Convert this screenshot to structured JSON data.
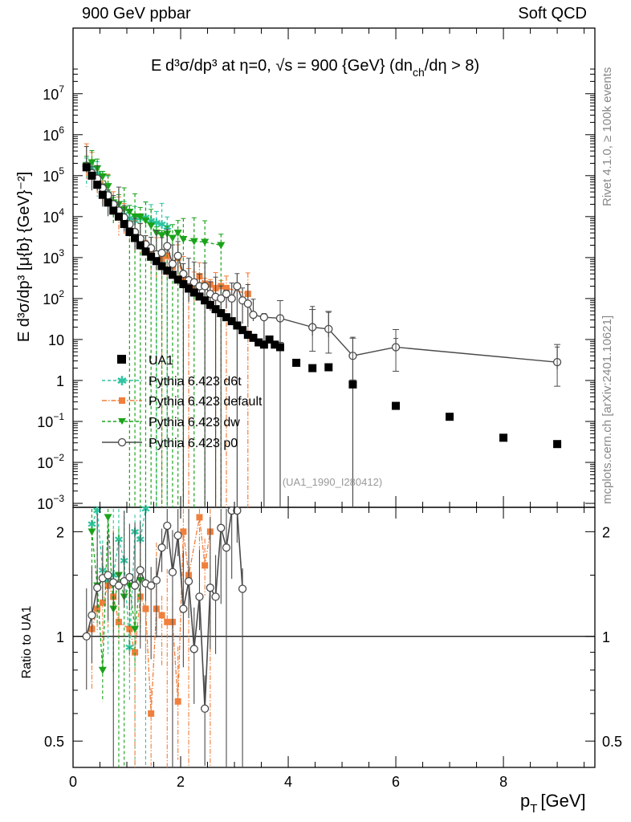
{
  "header": {
    "left": "900 GeV ppbar",
    "right": "Soft QCD"
  },
  "side": {
    "rivet": "Rivet 4.1.0, ≥ 100k events",
    "mcplots": "mcplots.cern.ch [arXiv:2401.10621]"
  },
  "plot": {
    "title_lead": "E",
    "title_main": "d³σ/dp³ at η=0, √s = 900 {GeV} (dn",
    "title_sub": "ch",
    "title_tail": "/dη > 8)",
    "ylabel": "E d³σ/dp³ [μ{b} {GeV}⁻²]",
    "ratio_ylabel": "Ratio to UA1",
    "xlabel_main": "p",
    "xlabel_sub": "T",
    "xlabel_unit": "[GeV]",
    "analysis": "(UA1_1990_I280412)",
    "legend": [
      "UA1",
      "Pythia 6.423 d6t",
      "Pythia 6.423 default",
      "Pythia 6.423 dw",
      "Pythia 6.423 p0"
    ],
    "main_ticks": [
      {
        "base": "10",
        "exp": "7"
      },
      {
        "base": "10",
        "exp": "6"
      },
      {
        "base": "10",
        "exp": "5"
      },
      {
        "base": "10",
        "exp": "4"
      },
      {
        "base": "10",
        "exp": "3"
      },
      {
        "base": "10",
        "exp": "2"
      },
      {
        "base": "10",
        "exp": ""
      },
      {
        "base": "1",
        "exp": ""
      },
      {
        "base": "10",
        "exp": "−1"
      },
      {
        "base": "10",
        "exp": "−2"
      },
      {
        "base": "10",
        "exp": "−3"
      }
    ],
    "ratio_ticks": [
      "2",
      "1",
      "0.5"
    ],
    "x_ticks": [
      "0",
      "2",
      "4",
      "6",
      "8"
    ]
  },
  "chart_data": {
    "type": "scatter",
    "title": "E d³σ/dp³ at η=0, √s = 900 {GeV} (dn_ch/dη > 8)",
    "xlabel": "p_T [GeV]",
    "ylabel": "E d³σ/dp³ [μ{b} {GeV}⁻²]",
    "xlim": [
      0,
      9.7
    ],
    "ylim": [
      0.0008,
      400000000
    ],
    "yscale": "log",
    "ratio_ylabel": "Ratio to UA1",
    "ratio_ylim": [
      0.42,
      2.35
    ],
    "grid": false,
    "legend_position": "bottom-left",
    "colors": {
      "UA1": "#000000",
      "d6t": "#2ec4a0",
      "default": "#f07f3c",
      "dw": "#1aa31a",
      "p0": "#4a4a4a"
    },
    "series": [
      {
        "name": "UA1",
        "marker": "square",
        "x": [
          0.25,
          0.35,
          0.45,
          0.55,
          0.65,
          0.75,
          0.85,
          0.95,
          1.05,
          1.15,
          1.25,
          1.35,
          1.45,
          1.55,
          1.65,
          1.75,
          1.85,
          1.95,
          2.05,
          2.15,
          2.25,
          2.35,
          2.45,
          2.55,
          2.65,
          2.75,
          2.85,
          2.95,
          3.05,
          3.15,
          3.25,
          3.35,
          3.45,
          3.55,
          3.65,
          3.75,
          3.85,
          4.15,
          4.45,
          4.75,
          5.2,
          6.0,
          7.0,
          8.0,
          9.0
        ],
        "y": [
          160000,
          100000,
          60000,
          34000,
          22000,
          14000,
          10000,
          6600,
          4200,
          3000,
          2000,
          1400,
          1050,
          820,
          620,
          480,
          380,
          290,
          225,
          175,
          140,
          112,
          90,
          70,
          55,
          44,
          35,
          28,
          22,
          17,
          13,
          11,
          8.5,
          7.5,
          10,
          7.5,
          6.5,
          2.7,
          2,
          2.1,
          0.8,
          0.24,
          0.13,
          0.04,
          0.028
        ]
      },
      {
        "name": "Pythia 6.423 d6t",
        "marker": "star",
        "x": [
          0.25,
          0.35,
          0.45,
          0.55,
          0.65,
          0.75,
          0.85,
          0.95,
          1.05,
          1.15,
          1.25,
          1.35,
          1.45,
          1.55,
          1.65,
          1.75
        ],
        "y": [
          180000,
          150000,
          110000,
          55000,
          35000,
          20000,
          14000,
          11000,
          9000,
          8000,
          9000,
          9500,
          8000,
          7000,
          6500,
          5500
        ]
      },
      {
        "name": "Pythia 6.423 default",
        "marker": "square",
        "x": [
          0.25,
          0.35,
          0.45,
          0.55,
          0.65,
          0.75,
          0.85,
          0.95,
          1.05,
          1.15,
          1.25,
          1.35,
          1.45,
          1.55,
          1.65,
          1.75,
          1.85,
          1.95,
          2.05,
          2.15,
          2.25,
          2.35,
          2.45,
          2.55,
          2.65,
          2.75,
          2.85,
          3.25
        ],
        "y": [
          160000,
          105000,
          75000,
          42000,
          30000,
          18000,
          13000,
          9000,
          6200,
          4000,
          2700,
          2000,
          1200,
          1000,
          950,
          1100,
          600,
          1000,
          300,
          250,
          200,
          350,
          230,
          220,
          180,
          200,
          180,
          130
        ]
      },
      {
        "name": "Pythia 6.423 dw",
        "marker": "triangle-down",
        "x": [
          0.25,
          0.35,
          0.45,
          0.55,
          0.65,
          0.75,
          0.85,
          0.95,
          1.05,
          1.15,
          1.25,
          1.35,
          1.45,
          1.55,
          1.65,
          1.75,
          1.85,
          1.95,
          2.05,
          2.25,
          2.45,
          2.75
        ],
        "y": [
          180000,
          210000,
          150000,
          95000,
          55000,
          22000,
          20000,
          15000,
          13000,
          10000,
          10000,
          8000,
          6000,
          4000,
          3500,
          3800,
          3000,
          4000,
          2800,
          2500,
          2400,
          2000
        ]
      },
      {
        "name": "Pythia 6.423 p0",
        "marker": "open-circle",
        "x": [
          0.25,
          0.35,
          0.45,
          0.55,
          0.65,
          0.75,
          0.85,
          0.95,
          1.05,
          1.15,
          1.25,
          1.35,
          1.45,
          1.55,
          1.65,
          1.75,
          1.85,
          1.95,
          2.05,
          2.15,
          2.25,
          2.35,
          2.45,
          2.55,
          2.65,
          2.75,
          2.85,
          2.95,
          3.05,
          3.15,
          3.25,
          3.35,
          3.55,
          3.85,
          4.45,
          4.75,
          5.2,
          6.0,
          9.0
        ],
        "y": [
          170000,
          115000,
          85000,
          50000,
          33000,
          20000,
          14000,
          9500,
          6500,
          4200,
          2900,
          2100,
          1700,
          1200,
          1300,
          1900,
          700,
          1100,
          400,
          280,
          250,
          200,
          200,
          130,
          110,
          100,
          130,
          100,
          200,
          90,
          75,
          40,
          35,
          33,
          20,
          18,
          4,
          6.5,
          2.8
        ]
      }
    ],
    "ratio": {
      "reference": 1,
      "series": [
        {
          "name": "Pythia 6.423 d6t",
          "x": [
            0.35,
            0.45,
            0.55,
            0.65,
            0.75,
            0.85,
            0.95,
            1.05,
            1.15,
            1.25,
            1.35
          ],
          "y": [
            2.1,
            2.3,
            1.55,
            1.45,
            1.5,
            1.9,
            1.65,
            0.93,
            2.0,
            1.9,
            2.4
          ]
        },
        {
          "name": "Pythia 6.423 default",
          "x": [
            0.35,
            0.45,
            0.55,
            0.65,
            0.75,
            0.85,
            1.05,
            1.15,
            1.25,
            1.35,
            1.45,
            1.55,
            1.65,
            1.75,
            1.85,
            1.95,
            2.05,
            2.15,
            2.35,
            2.45,
            2.55
          ],
          "y": [
            1.05,
            1.2,
            1.25,
            1.4,
            1.3,
            1.1,
            1.05,
            0.9,
            1.3,
            1.2,
            0.6,
            1.2,
            1.15,
            1.1,
            1.1,
            0.65,
            2.0,
            1.5,
            2.2,
            1.6,
            2.0
          ]
        },
        {
          "name": "Pythia 6.423 dw",
          "x": [
            0.35,
            0.45,
            0.55,
            0.65,
            0.75,
            0.85,
            0.95,
            1.05,
            1.15,
            1.25
          ],
          "y": [
            2.0,
            1.4,
            0.8,
            2.2,
            1.2,
            1.5,
            1.3,
            1.4,
            1.05,
            1.45
          ]
        },
        {
          "name": "Pythia 6.423 p0",
          "x": [
            0.25,
            0.35,
            0.45,
            0.55,
            0.65,
            0.75,
            0.85,
            0.95,
            1.05,
            1.15,
            1.25,
            1.35,
            1.45,
            1.55,
            1.65,
            1.75,
            1.85,
            1.95,
            2.05,
            2.15,
            2.25,
            2.35,
            2.45,
            2.55,
            2.65,
            2.75,
            2.85,
            2.95,
            3.05,
            3.15
          ],
          "y": [
            1.0,
            1.15,
            1.38,
            1.47,
            1.5,
            1.43,
            1.4,
            1.44,
            1.48,
            1.4,
            1.55,
            1.42,
            1.4,
            1.45,
            1.8,
            2.08,
            1.53,
            1.95,
            1.2,
            1.44,
            0.92,
            1.3,
            0.62,
            1.38,
            1.3,
            2.05,
            1.8,
            2.3,
            2.3,
            1.37
          ]
        }
      ]
    }
  }
}
